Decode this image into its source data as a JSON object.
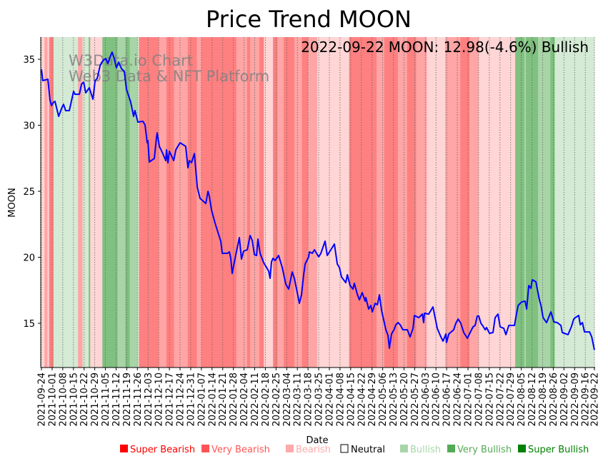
{
  "chart_data": {
    "type": "line",
    "title": "Price Trend MOON",
    "xlabel": "Date",
    "ylabel": "MOON",
    "ylim": [
      11.65,
      36.68
    ],
    "yticks": [
      15,
      20,
      25,
      30,
      35
    ],
    "start_date": "2021-09-24",
    "xlim_days": [
      0,
      363
    ],
    "xtick_labels": [
      "2021-09-24",
      "2021-10-01",
      "2021-10-08",
      "2021-10-15",
      "2021-10-22",
      "2021-10-29",
      "2021-11-05",
      "2021-11-12",
      "2021-11-19",
      "2021-11-26",
      "2021-12-03",
      "2021-12-10",
      "2021-12-17",
      "2021-12-24",
      "2021-12-31",
      "2022-01-07",
      "2022-01-14",
      "2022-01-21",
      "2022-01-28",
      "2022-02-04",
      "2022-02-11",
      "2022-02-18",
      "2022-02-25",
      "2022-03-04",
      "2022-03-11",
      "2022-03-18",
      "2022-03-25",
      "2022-04-01",
      "2022-04-08",
      "2022-04-15",
      "2022-04-22",
      "2022-04-29",
      "2022-05-06",
      "2022-05-13",
      "2022-05-20",
      "2022-05-27",
      "2022-06-03",
      "2022-06-10",
      "2022-06-17",
      "2022-06-24",
      "2022-07-01",
      "2022-07-08",
      "2022-07-15",
      "2022-07-22",
      "2022-07-29",
      "2022-08-05",
      "2022-08-12",
      "2022-08-19",
      "2022-08-26",
      "2022-09-02",
      "2022-09-09",
      "2022-09-16",
      "2022-09-22"
    ],
    "grid": "vertical dotted at x ticks",
    "series": [
      {
        "name": "MOON",
        "color": "#0000ff",
        "day": [
          0,
          0.9,
          4.2,
          5.6,
          6.6,
          8.0,
          8.9,
          11.3,
          13.6,
          14.5,
          15.9,
          18.3,
          21.1,
          22.0,
          24.9,
          26.3,
          27.7,
          29.1,
          31.4,
          33.8,
          35.2,
          36.6,
          38.5,
          39.4,
          40.8,
          42.2,
          43.6,
          45.0,
          46.4,
          47.8,
          49.2,
          50.7,
          52.5,
          54.4,
          55.8,
          58.6,
          60.5,
          61.4,
          63.3,
          66.6,
          68.0,
          69.4,
          69.9,
          70.8,
          74.1,
          75.5,
          76.0,
          77.4,
          79.7,
          81.6,
          82.1,
          83.0,
          84.0,
          86.8,
          88.2,
          89.6,
          91.0,
          94.7,
          96.2,
          97.1,
          98.5,
          100.4,
          102.3,
          104.1,
          107.9,
          109.3,
          110.2,
          111.6,
          114.0,
          117.7,
          118.7,
          122.0,
          123.4,
          124.3,
          125.2,
          127.1,
          129.9,
          131.3,
          132.7,
          135.1,
          137.0,
          138.4,
          139.8,
          141.2,
          142.1,
          143.5,
          145.9,
          149.2,
          150.1,
          151.0,
          152.0,
          153.4,
          155.7,
          158.1,
          160.4,
          162.3,
          164.6,
          166.0,
          168.4,
          169.3,
          170.7,
          172.1,
          173.1,
          175.4,
          175.9,
          177.8,
          179.2,
          182.0,
          183.4,
          186.2,
          187.6,
          190.0,
          192.3,
          194.2,
          195.6,
          197.0,
          199.8,
          200.8,
          202.6,
          204.5,
          205.4,
          207.3,
          208.7,
          210.6,
          212.5,
          212.9,
          214.8,
          216.2,
          217.2,
          219.0,
          220.5,
          221.9,
          223.3,
          226.1,
          227.5,
          228.4,
          229.8,
          231.7,
          232.6,
          234.1,
          235.5,
          237.3,
          240.2,
          242.0,
          243.9,
          244.8,
          247.7,
          250.0,
          250.9,
          251.4,
          254.2,
          257.0,
          259.8,
          262.2,
          263.6,
          265.5,
          265.9,
          267.4,
          270.6,
          272.0,
          273.5,
          275.3,
          277.2,
          279.6,
          281.4,
          283.3,
          284.7,
          286.1,
          287.1,
          288.5,
          289.9,
          291.3,
          292.2,
          294.1,
          296.4,
          297.8,
          299.7,
          301.1,
          303.5,
          304.9,
          306.8,
          310.5,
          311.4,
          312.9,
          315.2,
          317.5,
          318.5,
          319.9,
          321.3,
          322.2,
          324.6,
          325.5,
          326.9,
          327.9,
          329.3,
          331.6,
          334.4,
          334.9,
          336.3,
          338.6,
          341.0,
          341.9,
          345.7,
          348.0,
          349.4,
          350.4,
          352.7,
          353.7,
          355.1,
          356.5,
          358.8,
          359.8,
          361.2,
          363
        ],
        "price": [
          34.24,
          33.38,
          33.49,
          31.92,
          31.49,
          31.76,
          31.81,
          30.68,
          31.38,
          31.59,
          31.11,
          31.11,
          32.57,
          32.35,
          32.35,
          33.11,
          33.27,
          32.46,
          32.84,
          31.97,
          33.38,
          33.54,
          34.51,
          34.73,
          34.95,
          35.05,
          34.68,
          35.16,
          35.54,
          35.05,
          34.35,
          34.78,
          34.3,
          34.08,
          32.73,
          31.76,
          30.68,
          31.11,
          30.24,
          30.3,
          30.03,
          28.68,
          28.84,
          27.22,
          27.49,
          29.05,
          29.43,
          28.41,
          27.86,
          27.32,
          28.14,
          27.16,
          28.03,
          27.32,
          28.14,
          28.41,
          28.68,
          28.41,
          26.78,
          27.32,
          27.16,
          27.86,
          25.32,
          24.46,
          24.08,
          25.0,
          24.62,
          23.59,
          22.57,
          21.22,
          20.3,
          20.3,
          20.41,
          19.92,
          18.78,
          19.92,
          21.49,
          19.86,
          20.46,
          20.57,
          21.65,
          21.27,
          20.19,
          20.14,
          21.38,
          20.3,
          19.59,
          18.95,
          18.41,
          19.65,
          19.92,
          19.76,
          20.14,
          19.22,
          17.97,
          17.59,
          18.89,
          18.41,
          17.05,
          16.51,
          17.16,
          18.68,
          19.49,
          20.03,
          20.41,
          20.3,
          20.57,
          20.03,
          20.3,
          21.22,
          20.14,
          20.57,
          21.0,
          19.49,
          19.22,
          18.51,
          18.08,
          18.68,
          17.86,
          17.59,
          18.03,
          17.22,
          16.78,
          17.32,
          16.68,
          16.95,
          16.08,
          16.35,
          15.86,
          16.51,
          16.41,
          17.16,
          15.97,
          14.51,
          14.08,
          13.11,
          14.19,
          14.57,
          14.89,
          15.05,
          14.89,
          14.51,
          14.51,
          13.97,
          14.62,
          15.59,
          15.43,
          15.7,
          15.05,
          15.76,
          15.7,
          16.24,
          14.62,
          13.97,
          13.65,
          14.19,
          13.54,
          14.19,
          14.51,
          15.0,
          15.32,
          15.0,
          14.3,
          13.86,
          14.3,
          14.73,
          14.84,
          15.54,
          15.54,
          15.0,
          14.78,
          14.51,
          14.68,
          14.24,
          14.3,
          15.43,
          15.7,
          14.73,
          14.62,
          14.14,
          14.84,
          14.84,
          15.43,
          16.35,
          16.62,
          16.68,
          16.08,
          17.86,
          17.65,
          18.3,
          18.14,
          17.59,
          16.78,
          16.35,
          15.43,
          15.05,
          15.86,
          15.7,
          15.11,
          15.05,
          14.84,
          14.3,
          14.14,
          14.78,
          15.32,
          15.43,
          15.59,
          14.89,
          15.05,
          14.35,
          14.35,
          14.35,
          13.97,
          12.98
        ]
      }
    ],
    "sentiment_bands": [
      [
        0,
        2,
        "B"
      ],
      [
        2,
        4,
        "VB"
      ],
      [
        4,
        5,
        "B"
      ],
      [
        5,
        8,
        "SB"
      ],
      [
        8,
        24,
        "Bu"
      ],
      [
        24,
        27,
        "VB"
      ],
      [
        27,
        31,
        "Bu"
      ],
      [
        31,
        32,
        "SBu"
      ],
      [
        32,
        40,
        "B"
      ],
      [
        40,
        50,
        "SBu"
      ],
      [
        50,
        55,
        "VBu"
      ],
      [
        55,
        58,
        "SBu"
      ],
      [
        58,
        63,
        "VBu"
      ],
      [
        63,
        64,
        "Bu"
      ],
      [
        64,
        77,
        "SB"
      ],
      [
        77,
        82,
        "VB"
      ],
      [
        82,
        87,
        "SB"
      ],
      [
        87,
        96,
        "VB"
      ],
      [
        96,
        102,
        "SB"
      ],
      [
        102,
        105,
        "VB"
      ],
      [
        105,
        128,
        "SB"
      ],
      [
        128,
        135,
        "VB"
      ],
      [
        135,
        137,
        "SB"
      ],
      [
        137,
        143,
        "VB"
      ],
      [
        143,
        146,
        "SB"
      ],
      [
        146,
        152,
        "B"
      ],
      [
        152,
        155,
        "SB"
      ],
      [
        155,
        159,
        "VB"
      ],
      [
        159,
        166,
        "SB"
      ],
      [
        166,
        171,
        "VB"
      ],
      [
        171,
        175,
        "SB"
      ],
      [
        175,
        181,
        "VB"
      ],
      [
        181,
        202,
        "B"
      ],
      [
        202,
        220,
        "SB"
      ],
      [
        220,
        225,
        "VB"
      ],
      [
        225,
        234,
        "SB"
      ],
      [
        234,
        240,
        "VB"
      ],
      [
        240,
        246,
        "SB"
      ],
      [
        246,
        253,
        "VB"
      ],
      [
        253,
        265,
        "B"
      ],
      [
        265,
        275,
        "VB"
      ],
      [
        275,
        281,
        "SB"
      ],
      [
        281,
        287,
        "VB"
      ],
      [
        287,
        311,
        "B"
      ],
      [
        311,
        317,
        "SBu"
      ],
      [
        317,
        318,
        "VBu"
      ],
      [
        318,
        326,
        "SBu"
      ],
      [
        326,
        334,
        "VBu"
      ],
      [
        334,
        337,
        "SBu"
      ],
      [
        337,
        363,
        "Bu"
      ]
    ],
    "band_colors": {
      "SB": "#ff8080",
      "VB": "#ffa5a5",
      "B": "#ffd5d5",
      "N": "#ffffff",
      "Bu": "#d5ead5",
      "VBu": "#a8d5a8",
      "SBu": "#80c080"
    },
    "annotation": "2022-09-22 MOON: 12.98(-4.6%) Bullish",
    "watermark": [
      "W3Data.io Chart",
      "Web3 Data & NFT Platform"
    ],
    "legend": {
      "placement": "bottom",
      "items": [
        {
          "label": "Super Bearish",
          "color": "#ff0000"
        },
        {
          "label": "Very Bearish",
          "color": "#ff5555"
        },
        {
          "label": "Bearish",
          "color": "#ffaaaa"
        },
        {
          "label": "Neutral",
          "color": "#000000",
          "hollow": true
        },
        {
          "label": "Bullish",
          "color": "#a8d5a8"
        },
        {
          "label": "Very Bullish",
          "color": "#55aa55"
        },
        {
          "label": "Super Bullish",
          "color": "#008000"
        }
      ]
    }
  }
}
